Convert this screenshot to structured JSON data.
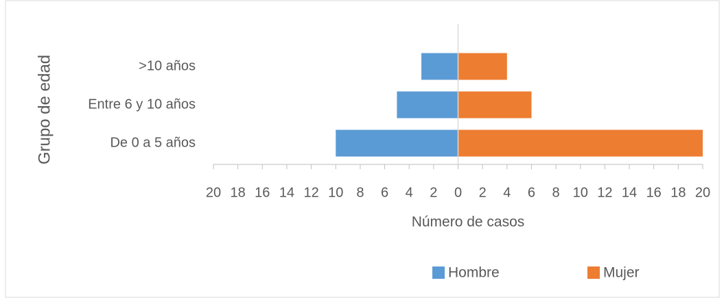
{
  "chart_data": {
    "type": "bar",
    "orientation": "horizontal",
    "x_label": "Número de casos",
    "y_label": "Grupo de edad",
    "categories": [
      "De 0 a 5 años",
      "Entre 6 y 10 años",
      ">10 años"
    ],
    "series": [
      {
        "name": "Hombre",
        "color": "#5b9bd5",
        "values": [
          -10,
          -5,
          -3
        ]
      },
      {
        "name": "Mujer",
        "color": "#ed7d31",
        "values": [
          20,
          6,
          4
        ]
      }
    ],
    "xlim": [
      -20,
      20
    ],
    "xticks": [
      {
        "value": -20,
        "label": "20"
      },
      {
        "value": -18,
        "label": "18"
      },
      {
        "value": -16,
        "label": "16"
      },
      {
        "value": -14,
        "label": "14"
      },
      {
        "value": -12,
        "label": "12"
      },
      {
        "value": -10,
        "label": "10"
      },
      {
        "value": -8,
        "label": "8"
      },
      {
        "value": -6,
        "label": "6"
      },
      {
        "value": -4,
        "label": "4"
      },
      {
        "value": -2,
        "label": "2"
      },
      0,
      2,
      4,
      6,
      8,
      10,
      12,
      14,
      16,
      18,
      20
    ],
    "legend": "bottom"
  }
}
